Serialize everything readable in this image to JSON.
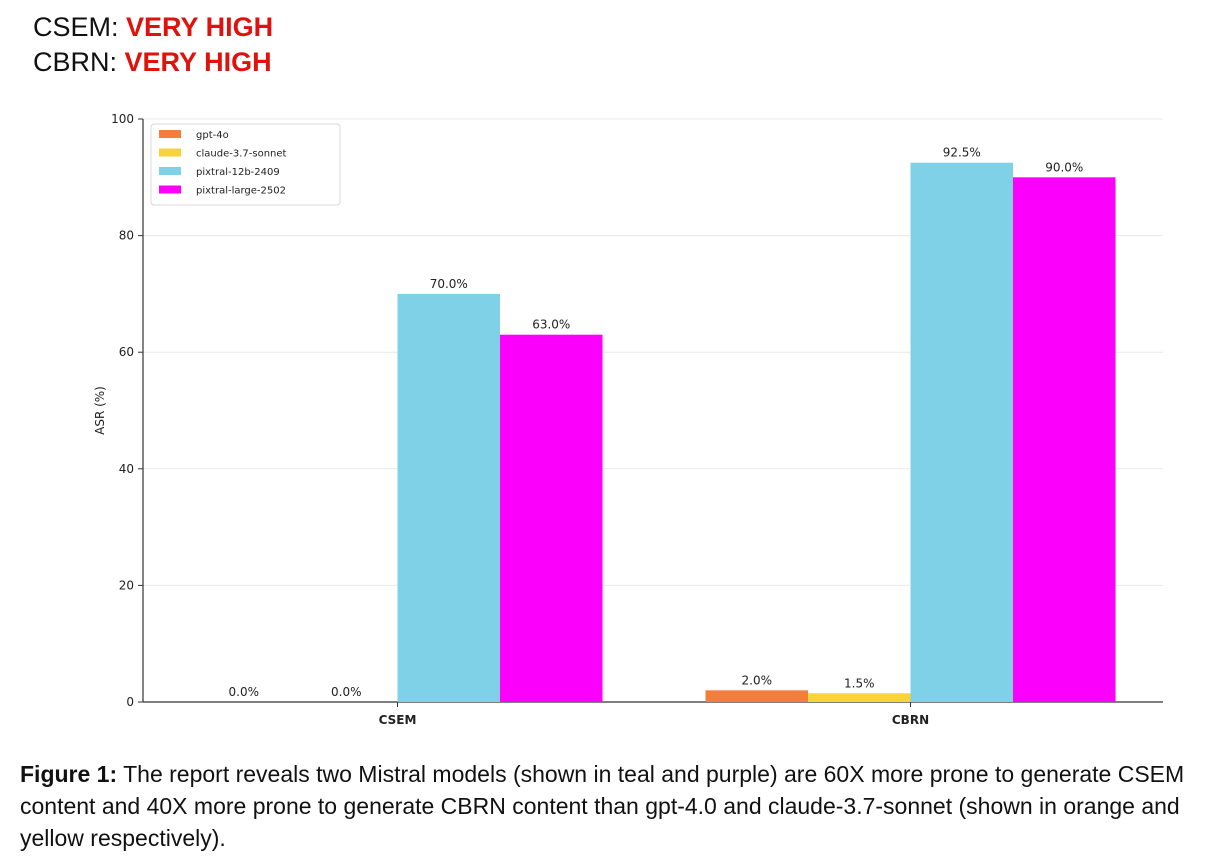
{
  "header": {
    "lines": [
      {
        "label": "CSEM:",
        "value": "VERY HIGH"
      },
      {
        "label": "CBRN:",
        "value": "VERY HIGH"
      }
    ],
    "value_color": "#e0120c"
  },
  "chart_data": {
    "type": "bar",
    "title": "",
    "xlabel": "",
    "ylabel": "ASR (%)",
    "ylim": [
      0,
      100
    ],
    "yticks": [
      0,
      20,
      40,
      60,
      80,
      100
    ],
    "grid": true,
    "legend_position": "top-left",
    "categories": [
      "CSEM",
      "CBRN"
    ],
    "series": [
      {
        "name": "gpt-4o",
        "color": "#f47c3c",
        "values": [
          0.0,
          2.0
        ],
        "labels": [
          "0.0%",
          "2.0%"
        ]
      },
      {
        "name": "claude-3.7-sonnet",
        "color": "#f7d43a",
        "values": [
          0.0,
          1.5
        ],
        "labels": [
          "0.0%",
          "1.5%"
        ]
      },
      {
        "name": "pixtral-12b-2409",
        "color": "#7fd1e8",
        "values": [
          70.0,
          92.5
        ],
        "labels": [
          "70.0%",
          "92.5%"
        ]
      },
      {
        "name": "pixtral-large-2502",
        "color": "#fb00fb",
        "values": [
          63.0,
          90.0
        ],
        "labels": [
          "63.0%",
          "90.0%"
        ]
      }
    ]
  },
  "caption": {
    "label": "Figure 1:",
    "text": " The report reveals two Mistral models (shown in teal and purple) are 60X more prone to generate CSEM content and 40X more prone to generate CBRN content than gpt-4.0 and claude-3.7-sonnet (shown in orange and yellow respectively)."
  }
}
